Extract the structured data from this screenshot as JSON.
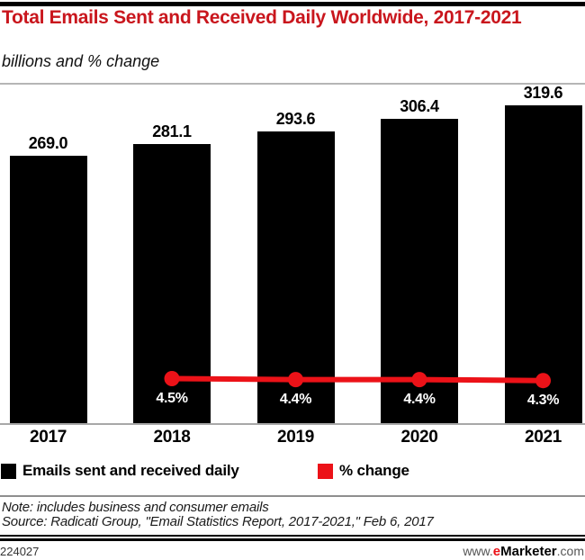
{
  "header": {
    "title": "Total Emails Sent and Received Daily Worldwide, 2017-2021",
    "subtitle": "billions and % change"
  },
  "colors": {
    "title_red": "#c9161d",
    "accent_red": "#ec1218",
    "bar_black": "#000000",
    "axis_gray": "#a8a8a8",
    "pct_label_white": "#ffffff"
  },
  "chart_data": {
    "type": "bar",
    "title": "Total Emails Sent and Received Daily Worldwide, 2017-2021",
    "subtitle": "billions and % change",
    "categories": [
      "2017",
      "2018",
      "2019",
      "2020",
      "2021"
    ],
    "series": [
      {
        "name": "Emails sent and received daily",
        "type": "bar",
        "values": [
          269.0,
          281.1,
          293.6,
          306.4,
          319.6
        ],
        "value_labels": [
          "269.0",
          "281.1",
          "293.6",
          "306.4",
          "319.6"
        ],
        "color": "#000000"
      },
      {
        "name": "% change",
        "type": "line",
        "values": [
          null,
          4.5,
          4.4,
          4.4,
          4.3
        ],
        "value_labels": [
          null,
          "4.5%",
          "4.4%",
          "4.4%",
          "4.3%"
        ],
        "color": "#ec1218"
      }
    ],
    "xlabel": "",
    "ylabel": "billions",
    "ylim": [
      0,
      340
    ],
    "grid": false,
    "legend_position": "bottom"
  },
  "legend": {
    "items": [
      {
        "label": "Emails sent and received daily",
        "color": "#000000"
      },
      {
        "label": "% change",
        "color": "#ec1218"
      }
    ]
  },
  "notes": {
    "note": "Note: includes business and consumer emails",
    "source": "Source: Radicati Group, \"Email Statistics Report, 2017-2021,\" Feb 6, 2017"
  },
  "footer": {
    "id": "224027",
    "site_prefix": "www.",
    "site_e": "e",
    "site_name": "Marketer",
    "site_suffix": ".com"
  }
}
